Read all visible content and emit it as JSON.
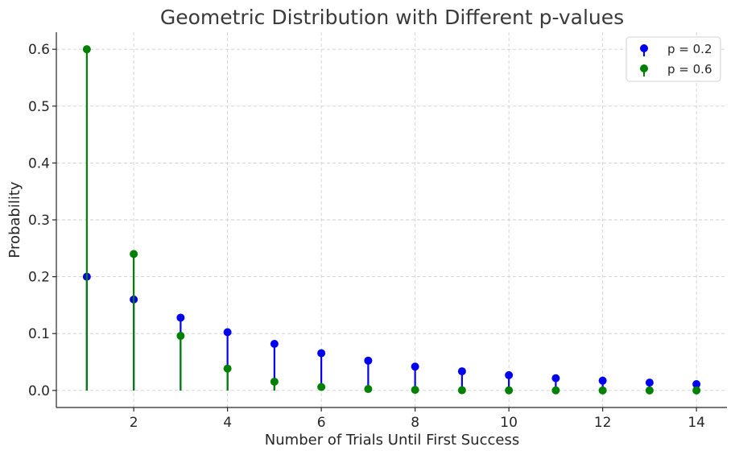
{
  "chart_data": {
    "type": "stem",
    "title": "Geometric Distribution with Different p-values",
    "xlabel": "Number of Trials Until First Success",
    "ylabel": "Probability",
    "xlim": [
      0.35,
      14.65
    ],
    "ylim": [
      -0.03,
      0.63
    ],
    "xticks": [
      2,
      4,
      6,
      8,
      10,
      12,
      14
    ],
    "yticks": [
      0.0,
      0.1,
      0.2,
      0.3,
      0.4,
      0.5,
      0.6
    ],
    "grid": true,
    "legend_position": "top-right",
    "x": [
      1,
      2,
      3,
      4,
      5,
      6,
      7,
      8,
      9,
      10,
      11,
      12,
      13,
      14
    ],
    "series": [
      {
        "name": "p = 0.2",
        "color": "#0000ee",
        "values": [
          0.2,
          0.16,
          0.128,
          0.1024,
          0.0819,
          0.0655,
          0.0524,
          0.0419,
          0.0336,
          0.0268,
          0.0215,
          0.0172,
          0.0137,
          0.011
        ]
      },
      {
        "name": "p = 0.6",
        "color": "#008000",
        "values": [
          0.6,
          0.24,
          0.096,
          0.0384,
          0.0154,
          0.0061,
          0.0025,
          0.001,
          0.0004,
          0.0002,
          0.0001,
          0.0,
          0.0,
          0.0
        ]
      }
    ]
  }
}
